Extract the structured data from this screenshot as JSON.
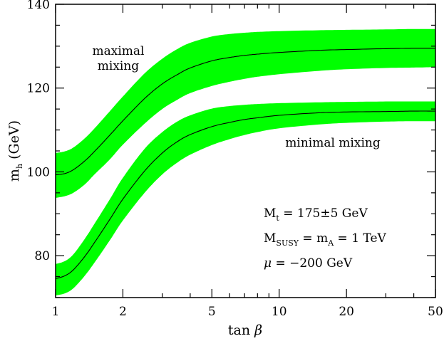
{
  "chart_data": {
    "type": "area",
    "xscale": "log",
    "xlim": [
      1,
      50
    ],
    "ylim": [
      70,
      140
    ],
    "xticks": [
      "1",
      "2",
      "5",
      "10",
      "20",
      "50"
    ],
    "yticks": [
      "80",
      "100",
      "120",
      "140"
    ],
    "xlabel": {
      "main": "tan ",
      "greek": "β"
    },
    "ylabel": {
      "main": "m",
      "sub": "h",
      "unit": " (GeV)"
    },
    "colors": {
      "band": "#00ff00",
      "line": "#000000",
      "axis": "#000000"
    },
    "series": [
      {
        "name": "maximal mixing",
        "x": [
          1,
          1.1,
          1.2,
          1.35,
          1.5,
          1.75,
          2,
          2.5,
          3,
          3.5,
          4,
          5,
          6,
          7,
          8,
          10,
          15,
          20,
          30,
          40,
          50
        ],
        "y": [
          99.3,
          99.6,
          100.5,
          102.6,
          105,
          108.8,
          112.2,
          117.5,
          121,
          123.2,
          124.8,
          126.5,
          127.3,
          127.8,
          128.1,
          128.5,
          129,
          129.2,
          129.4,
          129.5,
          129.5
        ],
        "upper": [
          104.5,
          104.9,
          105.8,
          108,
          110.5,
          114.5,
          118,
          123.5,
          127,
          129.3,
          130.8,
          132.3,
          132.9,
          133.2,
          133.4,
          133.6,
          133.8,
          133.9,
          134,
          134.1,
          134.1
        ],
        "lower": [
          93.8,
          94.2,
          95,
          97,
          99.5,
          103,
          106.5,
          111.5,
          115,
          117.2,
          118.8,
          120.5,
          121.5,
          122.2,
          122.7,
          123.3,
          124.1,
          124.5,
          124.8,
          124.9,
          125
        ]
      },
      {
        "name": "minimal mixing",
        "x": [
          1,
          1.1,
          1.2,
          1.35,
          1.5,
          1.75,
          2,
          2.5,
          3,
          3.5,
          4,
          5,
          6,
          7,
          8,
          10,
          15,
          20,
          30,
          40,
          50
        ],
        "y": [
          74.5,
          75.2,
          76.6,
          79.8,
          83.3,
          88.7,
          93.5,
          100.2,
          104.5,
          107.2,
          108.9,
          110.8,
          111.8,
          112.5,
          112.9,
          113.5,
          114.1,
          114.3,
          114.4,
          114.5,
          114.5
        ],
        "upper": [
          78,
          78.7,
          80.3,
          84,
          87.8,
          93.5,
          98.6,
          105.5,
          109.5,
          112,
          113.5,
          115.1,
          115.7,
          116,
          116.2,
          116.4,
          116.6,
          116.7,
          116.8,
          116.8,
          116.8
        ],
        "lower": [
          70.5,
          71,
          72.2,
          75.2,
          78.5,
          83.7,
          88.4,
          95,
          99.4,
          102.2,
          104.1,
          106.4,
          107.8,
          108.8,
          109.5,
          110.4,
          111.3,
          111.7,
          112,
          112.1,
          112.1
        ]
      }
    ],
    "annotations": {
      "maximal_line1": "maximal",
      "maximal_line2": "mixing",
      "minimal": "minimal mixing",
      "mt": {
        "main": "M",
        "sub": "t",
        "rest": " = 175±5 GeV"
      },
      "msusy": {
        "main": "M",
        "sub": "SUSY",
        "mid": " = m",
        "sub2": "A",
        "rest": " = 1 TeV"
      },
      "mu": {
        "main": "μ",
        "rest": " = −200 GeV"
      }
    }
  }
}
